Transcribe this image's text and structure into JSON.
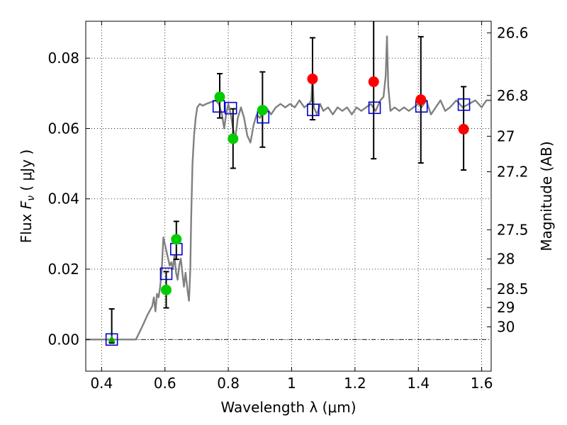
{
  "chart_data": {
    "type": "scatter",
    "xlabel": "Wavelength  λ (μm)",
    "ylabel_prefix": "Flux  ",
    "ylabel_symbol": "F",
    "ylabel_sub": "ν",
    "ylabel_suffix": " ( μJy )",
    "ylabel_right": "Magnitude (AB)",
    "xlim": [
      0.35,
      1.63
    ],
    "ylim": [
      -0.009,
      0.0905
    ],
    "grid": true,
    "x_ticks": [
      {
        "value": 0.4,
        "label": "0.4"
      },
      {
        "value": 0.6,
        "label": "0.6"
      },
      {
        "value": 0.8,
        "label": "0.8"
      },
      {
        "value": 1.0,
        "label": "1"
      },
      {
        "value": 1.2,
        "label": "1.2"
      },
      {
        "value": 1.4,
        "label": "1.4"
      },
      {
        "value": 1.6,
        "label": "1.6"
      }
    ],
    "y_ticks": [
      {
        "value": 0.0,
        "label": "0.00"
      },
      {
        "value": 0.02,
        "label": "0.02"
      },
      {
        "value": 0.04,
        "label": "0.04"
      },
      {
        "value": 0.06,
        "label": "0.06"
      },
      {
        "value": 0.08,
        "label": "0.08"
      }
    ],
    "mag_ticks": [
      {
        "value": 0.0872,
        "label": "26.6"
      },
      {
        "value": 0.0694,
        "label": "26.8"
      },
      {
        "value": 0.0578,
        "label": "27"
      },
      {
        "value": 0.0477,
        "label": "27.2"
      },
      {
        "value": 0.0312,
        "label": "27.5"
      },
      {
        "value": 0.0229,
        "label": "28"
      },
      {
        "value": 0.0144,
        "label": "28.5"
      },
      {
        "value": 0.0091,
        "label": "29"
      },
      {
        "value": 0.0036,
        "label": "30"
      }
    ],
    "series": [
      {
        "kind": "line",
        "color": "#808080",
        "points": [
          [
            0.35,
            0.0
          ],
          [
            0.508,
            0.0
          ],
          [
            0.515,
            0.0012
          ],
          [
            0.53,
            0.004
          ],
          [
            0.545,
            0.007
          ],
          [
            0.56,
            0.0095
          ],
          [
            0.565,
            0.012
          ],
          [
            0.57,
            0.008
          ],
          [
            0.575,
            0.013
          ],
          [
            0.58,
            0.012
          ],
          [
            0.585,
            0.015
          ],
          [
            0.59,
            0.02
          ],
          [
            0.595,
            0.029
          ],
          [
            0.6,
            0.027
          ],
          [
            0.605,
            0.025
          ],
          [
            0.61,
            0.023
          ],
          [
            0.615,
            0.021
          ],
          [
            0.62,
            0.022
          ],
          [
            0.625,
            0.02
          ],
          [
            0.63,
            0.024
          ],
          [
            0.635,
            0.019
          ],
          [
            0.64,
            0.017
          ],
          [
            0.645,
            0.021
          ],
          [
            0.65,
            0.023
          ],
          [
            0.655,
            0.019
          ],
          [
            0.66,
            0.015
          ],
          [
            0.665,
            0.019
          ],
          [
            0.672,
            0.0135
          ],
          [
            0.676,
            0.011
          ],
          [
            0.68,
            0.02
          ],
          [
            0.683,
            0.035
          ],
          [
            0.687,
            0.05
          ],
          [
            0.692,
            0.058
          ],
          [
            0.697,
            0.063
          ],
          [
            0.702,
            0.066
          ],
          [
            0.71,
            0.067
          ],
          [
            0.72,
            0.0665
          ],
          [
            0.73,
            0.067
          ],
          [
            0.745,
            0.0675
          ],
          [
            0.76,
            0.068
          ],
          [
            0.77,
            0.067
          ],
          [
            0.78,
            0.064
          ],
          [
            0.787,
            0.06
          ],
          [
            0.793,
            0.064
          ],
          [
            0.8,
            0.067
          ],
          [
            0.808,
            0.064
          ],
          [
            0.815,
            0.06
          ],
          [
            0.822,
            0.057
          ],
          [
            0.83,
            0.063
          ],
          [
            0.84,
            0.066
          ],
          [
            0.85,
            0.063
          ],
          [
            0.86,
            0.058
          ],
          [
            0.87,
            0.056
          ],
          [
            0.88,
            0.061
          ],
          [
            0.89,
            0.064
          ],
          [
            0.9,
            0.063
          ],
          [
            0.91,
            0.065
          ],
          [
            0.92,
            0.066
          ],
          [
            0.935,
            0.064
          ],
          [
            0.95,
            0.066
          ],
          [
            0.965,
            0.067
          ],
          [
            0.98,
            0.066
          ],
          [
            0.995,
            0.067
          ],
          [
            1.01,
            0.066
          ],
          [
            1.025,
            0.068
          ],
          [
            1.04,
            0.066
          ],
          [
            1.055,
            0.067
          ],
          [
            1.062,
            0.068
          ],
          [
            1.066,
            0.075
          ],
          [
            1.07,
            0.066
          ],
          [
            1.08,
            0.064
          ],
          [
            1.09,
            0.067
          ],
          [
            1.1,
            0.065
          ],
          [
            1.115,
            0.066
          ],
          [
            1.13,
            0.064
          ],
          [
            1.145,
            0.066
          ],
          [
            1.16,
            0.065
          ],
          [
            1.175,
            0.066
          ],
          [
            1.19,
            0.064
          ],
          [
            1.205,
            0.066
          ],
          [
            1.22,
            0.065
          ],
          [
            1.235,
            0.066
          ],
          [
            1.25,
            0.067
          ],
          [
            1.265,
            0.065
          ],
          [
            1.28,
            0.068
          ],
          [
            1.29,
            0.069
          ],
          [
            1.297,
            0.075
          ],
          [
            1.301,
            0.0862
          ],
          [
            1.305,
            0.072
          ],
          [
            1.312,
            0.065
          ],
          [
            1.325,
            0.066
          ],
          [
            1.34,
            0.065
          ],
          [
            1.355,
            0.066
          ],
          [
            1.37,
            0.065
          ],
          [
            1.385,
            0.066
          ],
          [
            1.4,
            0.067
          ],
          [
            1.41,
            0.066
          ],
          [
            1.425,
            0.068
          ],
          [
            1.44,
            0.064
          ],
          [
            1.455,
            0.066
          ],
          [
            1.47,
            0.068
          ],
          [
            1.485,
            0.065
          ],
          [
            1.5,
            0.066
          ],
          [
            1.52,
            0.068
          ],
          [
            1.54,
            0.066
          ],
          [
            1.56,
            0.067
          ],
          [
            1.58,
            0.068
          ],
          [
            1.6,
            0.066
          ],
          [
            1.615,
            0.068
          ],
          [
            1.63,
            0.068
          ]
        ]
      },
      {
        "kind": "errorbar",
        "color": "#000000",
        "points": [
          {
            "x": 0.432,
            "y_low": -0.001,
            "y_high": 0.0087
          },
          {
            "x": 0.604,
            "y_low": 0.009,
            "y_high": 0.0193
          },
          {
            "x": 0.636,
            "y_low": 0.0228,
            "y_high": 0.0336
          },
          {
            "x": 0.773,
            "y_low": 0.063,
            "y_high": 0.0756
          },
          {
            "x": 0.815,
            "y_low": 0.0487,
            "y_high": 0.0656
          },
          {
            "x": 0.908,
            "y_low": 0.0547,
            "y_high": 0.0761
          },
          {
            "x": 1.066,
            "y_low": 0.0625,
            "y_high": 0.0858
          },
          {
            "x": 1.259,
            "y_low": 0.0514,
            "y_high": 0.0905
          },
          {
            "x": 1.408,
            "y_low": 0.0502,
            "y_high": 0.0861
          },
          {
            "x": 1.543,
            "y_low": 0.0482,
            "y_high": 0.0719
          }
        ]
      },
      {
        "kind": "square",
        "color": "#0000cc",
        "points": [
          [
            0.432,
            0.0
          ],
          [
            0.604,
            0.0187
          ],
          [
            0.636,
            0.0257
          ],
          [
            0.77,
            0.0663
          ],
          [
            0.808,
            0.0658
          ],
          [
            0.91,
            0.0632
          ],
          [
            1.068,
            0.0653
          ],
          [
            1.262,
            0.0659
          ],
          [
            1.41,
            0.0663
          ],
          [
            1.544,
            0.0668
          ]
        ]
      },
      {
        "kind": "triangle",
        "color": "#00aa00",
        "points": [
          [
            0.432,
            0.0
          ]
        ]
      },
      {
        "kind": "circle",
        "color": "#00cc00",
        "points": [
          [
            0.604,
            0.0141
          ],
          [
            0.636,
            0.0285
          ],
          [
            0.773,
            0.069
          ],
          [
            0.815,
            0.0571
          ],
          [
            0.908,
            0.0652
          ]
        ]
      },
      {
        "kind": "circle",
        "color": "#ff0000",
        "points": [
          [
            1.066,
            0.0741
          ],
          [
            1.259,
            0.0733
          ],
          [
            1.408,
            0.0682
          ],
          [
            1.543,
            0.0598
          ]
        ]
      }
    ],
    "reference_line": {
      "y": 0.0,
      "style": "dash-dot"
    }
  }
}
